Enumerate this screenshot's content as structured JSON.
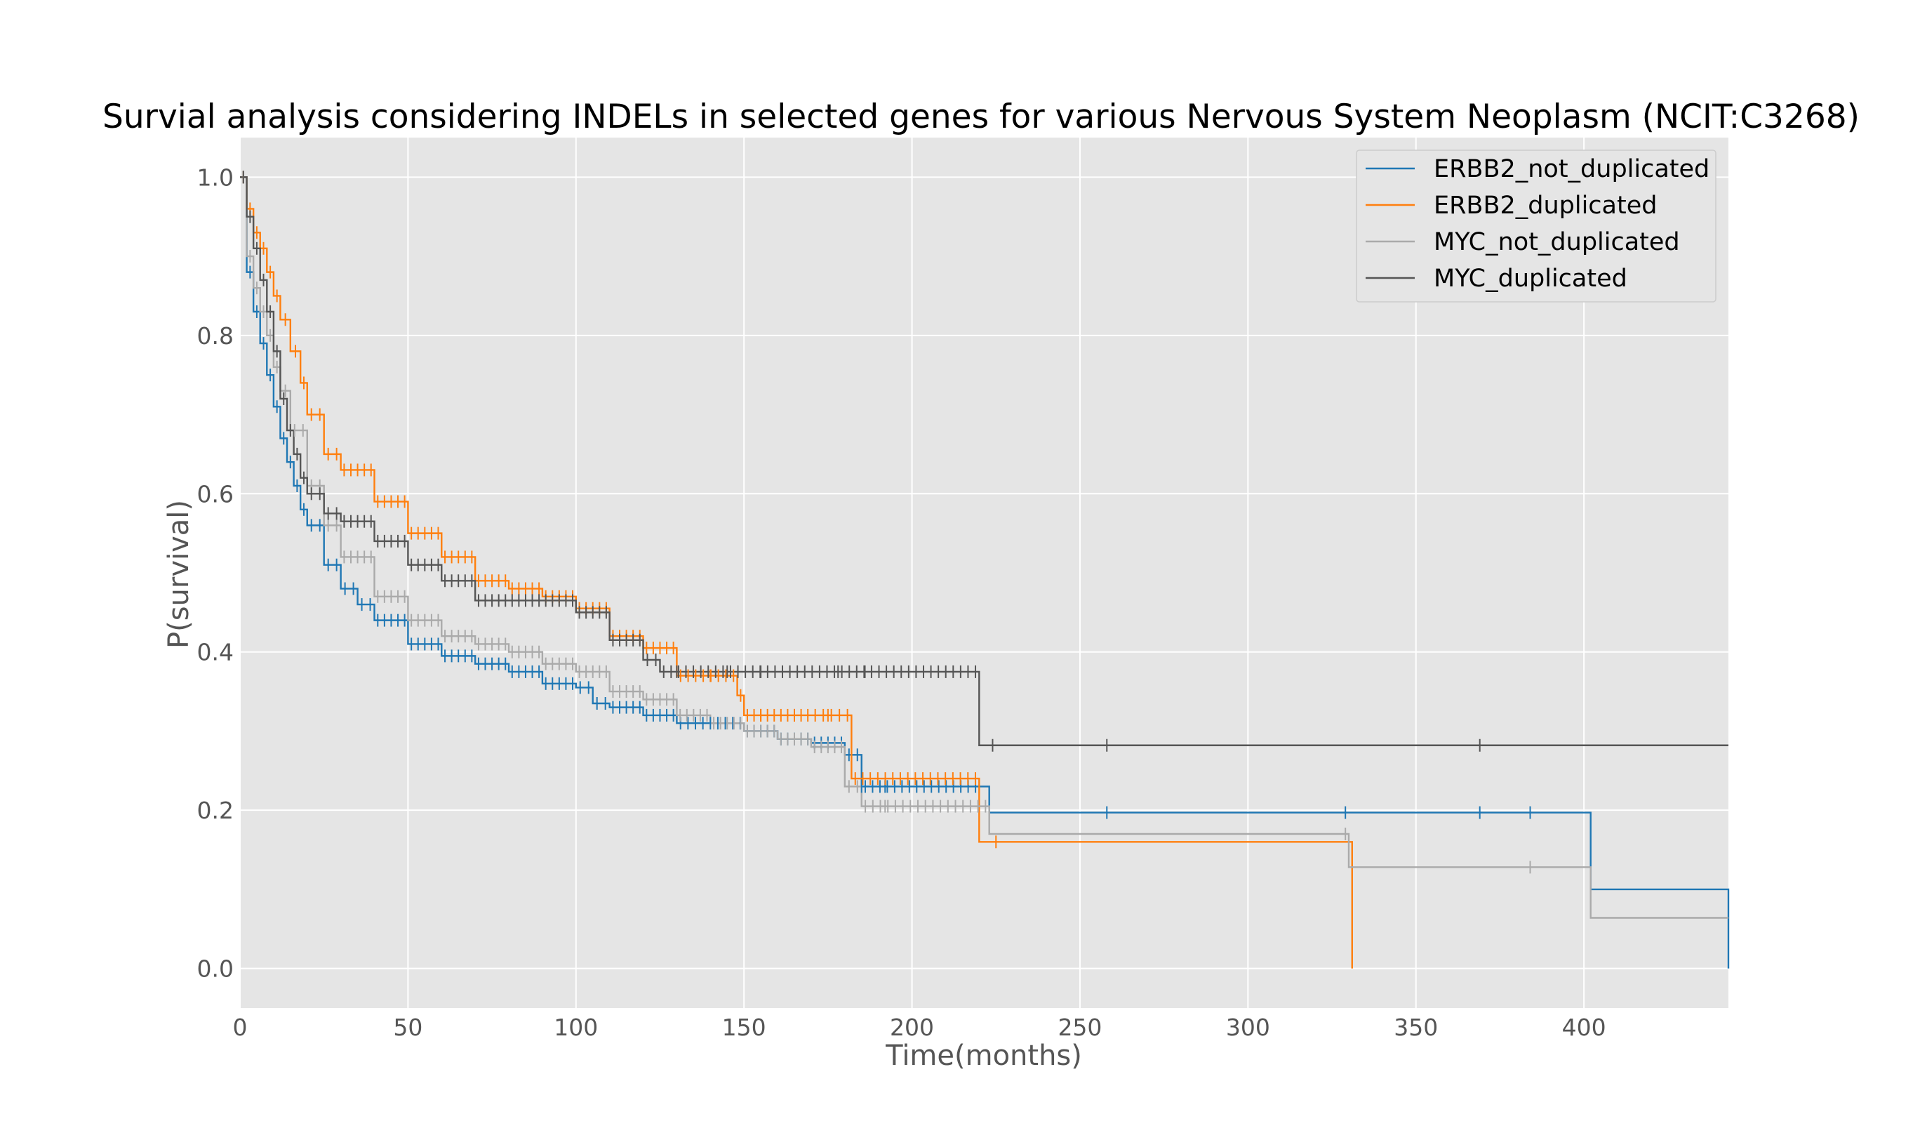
{
  "chart_data": {
    "type": "line",
    "title": "Survial analysis considering INDELs in selected genes for various Nervous System Neoplasm (NCIT:C3268)",
    "xlabel": "Time(months)",
    "ylabel": "P(survival)",
    "xlim": [
      0,
      443
    ],
    "ylim": [
      -0.05,
      1.05
    ],
    "xticks": [
      0,
      50,
      100,
      150,
      200,
      250,
      300,
      350,
      400
    ],
    "yticks": [
      0.0,
      0.2,
      0.4,
      0.6,
      0.8,
      1.0
    ],
    "xtick_labels": [
      "0",
      "50",
      "100",
      "150",
      "200",
      "250",
      "300",
      "350",
      "400"
    ],
    "ytick_labels": [
      "0.0",
      "0.2",
      "0.4",
      "0.6",
      "0.8",
      "1.0"
    ],
    "grid": true,
    "legend_position": "top-right",
    "style": "ggplot",
    "series": [
      {
        "name": "ERBB2_not_duplicated",
        "color": "#1f77b4",
        "x": [
          0,
          2,
          4,
          6,
          8,
          10,
          12,
          14,
          16,
          18,
          20,
          25,
          30,
          35,
          40,
          50,
          60,
          70,
          80,
          90,
          100,
          105,
          110,
          120,
          130,
          150,
          160,
          170,
          180,
          185,
          220,
          223,
          402,
          443
        ],
        "y": [
          1.0,
          0.88,
          0.83,
          0.79,
          0.75,
          0.71,
          0.67,
          0.64,
          0.61,
          0.58,
          0.56,
          0.51,
          0.48,
          0.46,
          0.44,
          0.41,
          0.395,
          0.385,
          0.375,
          0.36,
          0.355,
          0.335,
          0.33,
          0.32,
          0.31,
          0.3,
          0.29,
          0.285,
          0.27,
          0.23,
          0.23,
          0.197,
          0.1,
          0.0
        ],
        "censors_x": [
          185,
          192,
          258,
          329,
          369,
          384
        ],
        "censors_y": [
          0.23,
          0.23,
          0.197,
          0.197,
          0.197,
          0.197
        ]
      },
      {
        "name": "ERBB2_duplicated",
        "color": "#ff7f0e",
        "x": [
          0,
          2,
          4,
          6,
          8,
          10,
          12,
          15,
          18,
          20,
          25,
          30,
          40,
          50,
          60,
          70,
          80,
          90,
          100,
          110,
          120,
          130,
          148,
          150,
          160,
          170,
          182,
          220,
          331
        ],
        "y": [
          1.0,
          0.96,
          0.93,
          0.91,
          0.88,
          0.85,
          0.82,
          0.78,
          0.74,
          0.7,
          0.65,
          0.63,
          0.59,
          0.55,
          0.52,
          0.49,
          0.48,
          0.47,
          0.455,
          0.42,
          0.405,
          0.37,
          0.345,
          0.32,
          0.32,
          0.32,
          0.24,
          0.16,
          0.0
        ],
        "censors_x": [
          140,
          155,
          165,
          175,
          225
        ],
        "censors_y": [
          0.37,
          0.32,
          0.32,
          0.32,
          0.16
        ]
      },
      {
        "name": "MYC_not_duplicated",
        "color": "#aaaaaa",
        "x": [
          0,
          2,
          4,
          6,
          8,
          10,
          12,
          15,
          20,
          25,
          30,
          40,
          50,
          60,
          70,
          80,
          90,
          100,
          110,
          120,
          130,
          140,
          150,
          160,
          170,
          180,
          185,
          223,
          330,
          402,
          443
        ],
        "y": [
          1.0,
          0.9,
          0.86,
          0.83,
          0.8,
          0.76,
          0.73,
          0.68,
          0.61,
          0.56,
          0.52,
          0.47,
          0.44,
          0.42,
          0.41,
          0.4,
          0.385,
          0.375,
          0.35,
          0.34,
          0.32,
          0.31,
          0.3,
          0.29,
          0.28,
          0.23,
          0.205,
          0.17,
          0.128,
          0.064,
          0.064
        ],
        "censors_x": [
          192,
          329,
          384
        ],
        "censors_y": [
          0.205,
          0.17,
          0.128
        ]
      },
      {
        "name": "MYC_duplicated",
        "color": "#555555",
        "x": [
          0,
          2,
          4,
          6,
          8,
          10,
          12,
          14,
          16,
          18,
          20,
          25,
          30,
          40,
          50,
          60,
          70,
          80,
          90,
          100,
          110,
          120,
          125,
          220,
          443
        ],
        "y": [
          1.0,
          0.95,
          0.91,
          0.87,
          0.83,
          0.78,
          0.72,
          0.68,
          0.65,
          0.62,
          0.6,
          0.575,
          0.565,
          0.54,
          0.51,
          0.49,
          0.465,
          0.465,
          0.465,
          0.45,
          0.415,
          0.39,
          0.375,
          0.282,
          0.282
        ],
        "x_end": 369,
        "censors_x": [
          130,
          145,
          155,
          178,
          186,
          224,
          258,
          369
        ],
        "censors_y": [
          0.375,
          0.375,
          0.375,
          0.375,
          0.375,
          0.282,
          0.282,
          0.282
        ]
      }
    ]
  }
}
